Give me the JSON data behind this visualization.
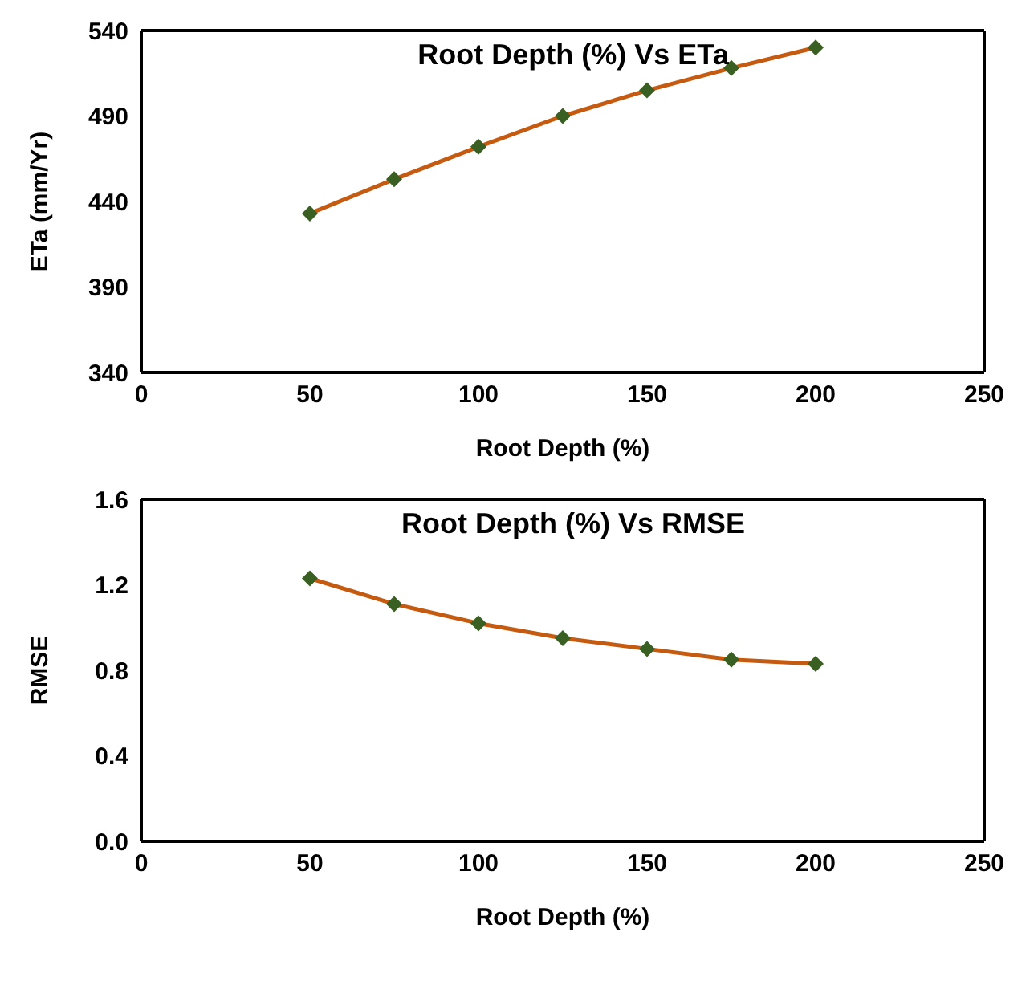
{
  "chart_data": [
    {
      "type": "line",
      "title": "Root Depth (%) Vs ETa",
      "xlabel": "Root Depth (%)",
      "ylabel": "ETa (mm/Yr)",
      "x": [
        50,
        75,
        100,
        125,
        150,
        175,
        200
      ],
      "series": [
        {
          "color": "#c55a11",
          "values": [
            433,
            453,
            472,
            490,
            505,
            518,
            530
          ]
        }
      ],
      "xlim": [
        0,
        250
      ],
      "xticks": [
        0,
        50,
        100,
        150,
        200,
        250
      ],
      "ylim": [
        340,
        540
      ],
      "yticks": [
        340,
        390,
        440,
        490,
        540
      ],
      "grid": false,
      "legend": false,
      "marker": "diamond",
      "line_style": "solid"
    },
    {
      "type": "line",
      "title": "Root Depth (%) Vs RMSE",
      "xlabel": "Root Depth (%)",
      "ylabel": "RMSE",
      "x": [
        50,
        75,
        100,
        125,
        150,
        175,
        200
      ],
      "series": [
        {
          "color": "#c55a11",
          "values": [
            1.23,
            1.11,
            1.02,
            0.95,
            0.9,
            0.85,
            0.83
          ]
        }
      ],
      "xlim": [
        0,
        250
      ],
      "xticks": [
        0,
        50,
        100,
        150,
        200,
        250
      ],
      "ylim": [
        0,
        1.6
      ],
      "yticks": [
        {
          "value": 0,
          "label": "0.0"
        },
        {
          "value": 0.4,
          "label": "0.4"
        },
        {
          "value": 0.8,
          "label": "0.8"
        },
        {
          "value": 1.2,
          "label": "1.2"
        },
        {
          "value": 1.6,
          "label": "1.6"
        }
      ],
      "grid": false,
      "legend": false,
      "marker": "diamond",
      "line_style": "solid"
    }
  ]
}
